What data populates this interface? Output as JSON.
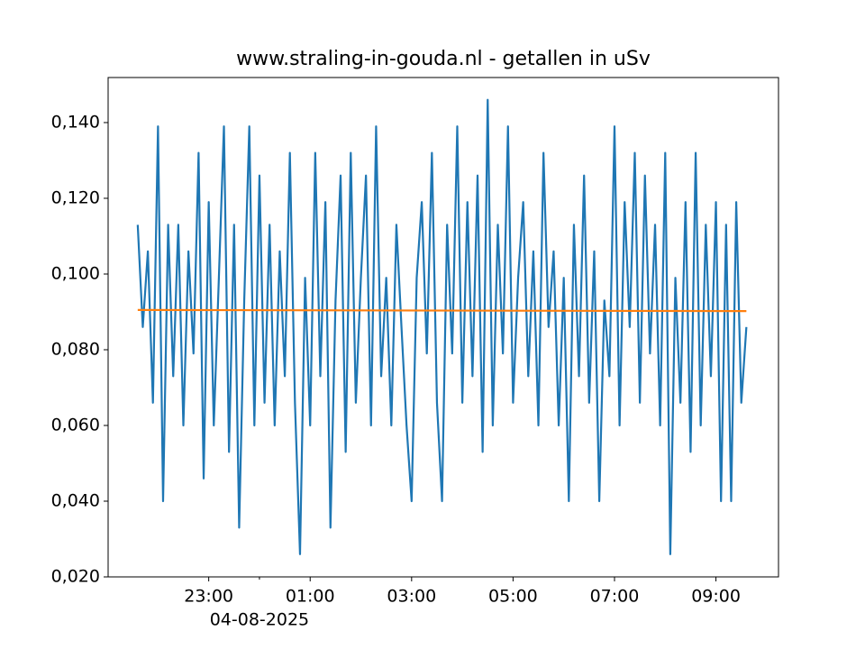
{
  "chart_data": {
    "type": "line",
    "title": "www.straling-in-gouda.nl - getallen in uSv",
    "series": [
      {
        "color": "#1f77b4",
        "x": [
          "2025-08-03 21:36",
          "2025-08-03 21:42",
          "2025-08-03 21:48",
          "2025-08-03 21:54",
          "2025-08-03 22:00",
          "2025-08-03 22:06",
          "2025-08-03 22:12",
          "2025-08-03 22:18",
          "2025-08-03 22:24",
          "2025-08-03 22:30",
          "2025-08-03 22:36",
          "2025-08-03 22:42",
          "2025-08-03 22:48",
          "2025-08-03 22:54",
          "2025-08-03 23:00",
          "2025-08-03 23:06",
          "2025-08-03 23:12",
          "2025-08-03 23:18",
          "2025-08-03 23:24",
          "2025-08-03 23:30",
          "2025-08-03 23:36",
          "2025-08-03 23:42",
          "2025-08-03 23:48",
          "2025-08-03 23:54",
          "2025-08-04 00:00",
          "2025-08-04 00:06",
          "2025-08-04 00:12",
          "2025-08-04 00:18",
          "2025-08-04 00:24",
          "2025-08-04 00:30",
          "2025-08-04 00:36",
          "2025-08-04 00:42",
          "2025-08-04 00:48",
          "2025-08-04 00:54",
          "2025-08-04 01:00",
          "2025-08-04 01:06",
          "2025-08-04 01:12",
          "2025-08-04 01:18",
          "2025-08-04 01:24",
          "2025-08-04 01:30",
          "2025-08-04 01:36",
          "2025-08-04 01:42",
          "2025-08-04 01:48",
          "2025-08-04 01:54",
          "2025-08-04 02:00",
          "2025-08-04 02:06",
          "2025-08-04 02:12",
          "2025-08-04 02:18",
          "2025-08-04 02:24",
          "2025-08-04 02:30",
          "2025-08-04 02:36",
          "2025-08-04 02:42",
          "2025-08-04 02:48",
          "2025-08-04 02:54",
          "2025-08-04 03:00",
          "2025-08-04 03:06",
          "2025-08-04 03:12",
          "2025-08-04 03:18",
          "2025-08-04 03:24",
          "2025-08-04 03:30",
          "2025-08-04 03:36",
          "2025-08-04 03:42",
          "2025-08-04 03:48",
          "2025-08-04 03:54",
          "2025-08-04 04:00",
          "2025-08-04 04:06",
          "2025-08-04 04:12",
          "2025-08-04 04:18",
          "2025-08-04 04:24",
          "2025-08-04 04:30",
          "2025-08-04 04:36",
          "2025-08-04 04:42",
          "2025-08-04 04:48",
          "2025-08-04 04:54",
          "2025-08-04 05:00",
          "2025-08-04 05:06",
          "2025-08-04 05:12",
          "2025-08-04 05:18",
          "2025-08-04 05:24",
          "2025-08-04 05:30",
          "2025-08-04 05:36",
          "2025-08-04 05:42",
          "2025-08-04 05:48",
          "2025-08-04 05:54",
          "2025-08-04 06:00",
          "2025-08-04 06:06",
          "2025-08-04 06:12",
          "2025-08-04 06:18",
          "2025-08-04 06:24",
          "2025-08-04 06:30",
          "2025-08-04 06:36",
          "2025-08-04 06:42",
          "2025-08-04 06:48",
          "2025-08-04 06:54",
          "2025-08-04 07:00",
          "2025-08-04 07:06",
          "2025-08-04 07:12",
          "2025-08-04 07:18",
          "2025-08-04 07:24",
          "2025-08-04 07:30",
          "2025-08-04 07:36",
          "2025-08-04 07:42",
          "2025-08-04 07:48",
          "2025-08-04 07:54",
          "2025-08-04 08:00",
          "2025-08-04 08:06",
          "2025-08-04 08:12",
          "2025-08-04 08:18",
          "2025-08-04 08:24",
          "2025-08-04 08:30",
          "2025-08-04 08:36",
          "2025-08-04 08:42",
          "2025-08-04 08:48",
          "2025-08-04 08:54",
          "2025-08-04 09:00",
          "2025-08-04 09:06",
          "2025-08-04 09:12",
          "2025-08-04 09:18",
          "2025-08-04 09:24",
          "2025-08-04 09:30",
          "2025-08-04 09:36"
        ],
        "values": [
          0.113,
          0.086,
          0.106,
          0.066,
          0.139,
          0.04,
          0.113,
          0.073,
          0.113,
          0.06,
          0.106,
          0.079,
          0.132,
          0.046,
          0.119,
          0.06,
          0.099,
          0.139,
          0.053,
          0.113,
          0.033,
          0.093,
          0.139,
          0.06,
          0.126,
          0.066,
          0.113,
          0.06,
          0.106,
          0.073,
          0.132,
          0.066,
          0.026,
          0.099,
          0.06,
          0.132,
          0.073,
          0.119,
          0.033,
          0.093,
          0.126,
          0.053,
          0.132,
          0.066,
          0.099,
          0.126,
          0.06,
          0.139,
          0.073,
          0.099,
          0.06,
          0.113,
          0.086,
          0.06,
          0.04,
          0.099,
          0.119,
          0.079,
          0.132,
          0.066,
          0.04,
          0.113,
          0.079,
          0.139,
          0.066,
          0.119,
          0.073,
          0.126,
          0.053,
          0.146,
          0.06,
          0.113,
          0.079,
          0.139,
          0.066,
          0.099,
          0.119,
          0.073,
          0.106,
          0.06,
          0.132,
          0.086,
          0.106,
          0.06,
          0.099,
          0.04,
          0.113,
          0.073,
          0.126,
          0.066,
          0.106,
          0.04,
          0.093,
          0.073,
          0.139,
          0.06,
          0.119,
          0.086,
          0.132,
          0.066,
          0.126,
          0.079,
          0.113,
          0.06,
          0.132,
          0.026,
          0.099,
          0.066,
          0.119,
          0.053,
          0.132,
          0.06,
          0.113,
          0.073,
          0.119,
          0.04,
          0.113,
          0.04,
          0.119,
          0.066,
          0.086
        ]
      },
      {
        "color": "#ff7f0e",
        "x": [
          "2025-08-03 21:36",
          "2025-08-04 09:36"
        ],
        "values": [
          0.0905,
          0.0902
        ]
      }
    ],
    "xlim": [
      "2025-08-03 21:01",
      "2025-08-04 10:14"
    ],
    "xticks": [
      {
        "value": "2025-08-03 23:00",
        "label": "23:00"
      },
      {
        "value": "2025-08-04 01:00",
        "label": "01:00"
      },
      {
        "value": "2025-08-04 03:00",
        "label": "03:00"
      },
      {
        "value": "2025-08-04 05:00",
        "label": "05:00"
      },
      {
        "value": "2025-08-04 07:00",
        "label": "07:00"
      },
      {
        "value": "2025-08-04 09:00",
        "label": "09:00"
      }
    ],
    "xticks_minor": [
      {
        "value": "2025-08-04 00:00",
        "label": "04-08-2025"
      }
    ],
    "ylim": [
      0.02,
      0.1519
    ],
    "yticks": [
      {
        "value": 0.02,
        "label": "0,020"
      },
      {
        "value": 0.04,
        "label": "0,040"
      },
      {
        "value": 0.06,
        "label": "0,060"
      },
      {
        "value": 0.08,
        "label": "0,080"
      },
      {
        "value": 0.1,
        "label": "0,100"
      },
      {
        "value": 0.12,
        "label": "0,120"
      },
      {
        "value": 0.14,
        "label": "0,140"
      }
    ]
  }
}
